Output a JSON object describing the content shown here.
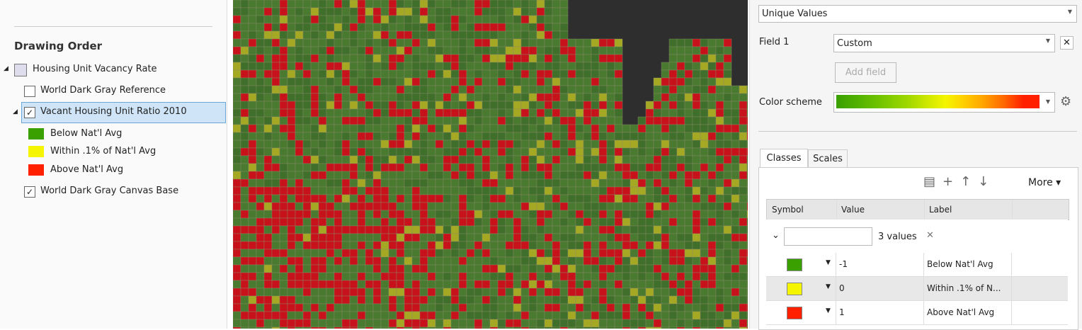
{
  "contents": {
    "heading": "Drawing Order",
    "map_name": "Housing Unit Vacancy Rate",
    "layers": [
      "World Dark Gray Reference",
      "Vacant Housing Unit Ratio 2010",
      "World Dark Gray Canvas Base"
    ],
    "legend": [
      "Below Nat'l Avg",
      "Within .1% of Nat'l Avg",
      "Above Nat'l Avg"
    ]
  },
  "symbology": {
    "renderer": "Unique Values",
    "field_label": "Field 1",
    "field_value": "Custom",
    "add_field": "Add field",
    "color_scheme_label": "Color scheme",
    "tabs": [
      "Classes",
      "Scales"
    ],
    "more": "More",
    "columns": [
      "Symbol",
      "Value",
      "Label"
    ],
    "group": "3 values",
    "rows": [
      {
        "value": -1,
        "label": "Below Nat'l Avg"
      },
      {
        "value": 0,
        "label": "Within .1% of N..."
      },
      {
        "value": 1,
        "label": "Above Nat'l Avg"
      }
    ]
  }
}
